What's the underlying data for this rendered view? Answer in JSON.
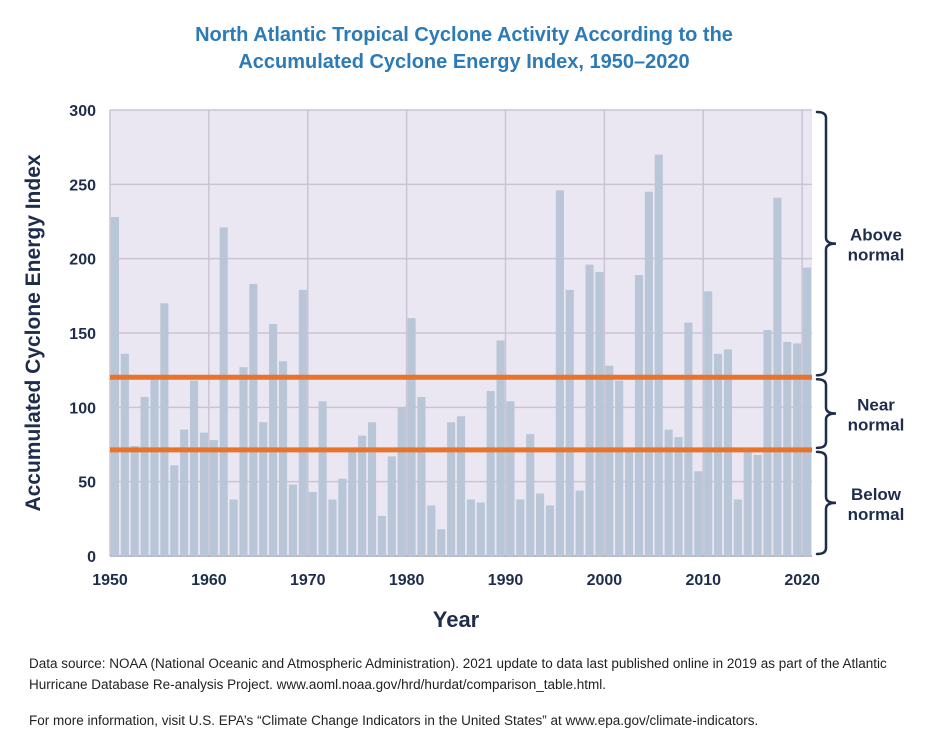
{
  "chart_data": {
    "type": "bar",
    "title": [
      "North Atlantic Tropical Cyclone Activity According to the",
      "Accumulated Cyclone Energy Index, 1950–2020"
    ],
    "xlabel": "Year",
    "ylabel": "Accumulated Cyclone Energy Index",
    "ylim": [
      0,
      300
    ],
    "yticks": [
      0,
      50,
      100,
      150,
      200,
      250,
      300
    ],
    "xticks": [
      1950,
      1960,
      1970,
      1980,
      1990,
      2000,
      2010,
      2020
    ],
    "grid": true,
    "categories": [
      1950,
      1951,
      1952,
      1953,
      1954,
      1955,
      1956,
      1957,
      1958,
      1959,
      1960,
      1961,
      1962,
      1963,
      1964,
      1965,
      1966,
      1967,
      1968,
      1969,
      1970,
      1971,
      1972,
      1973,
      1974,
      1975,
      1976,
      1977,
      1978,
      1979,
      1980,
      1981,
      1982,
      1983,
      1984,
      1985,
      1986,
      1987,
      1988,
      1989,
      1990,
      1991,
      1992,
      1993,
      1994,
      1995,
      1996,
      1997,
      1998,
      1999,
      2000,
      2001,
      2002,
      2003,
      2004,
      2005,
      2006,
      2007,
      2008,
      2009,
      2010,
      2011,
      2012,
      2013,
      2014,
      2015,
      2016,
      2017,
      2018,
      2019,
      2020
    ],
    "values": [
      228,
      136,
      74,
      107,
      120,
      170,
      61,
      85,
      118,
      83,
      78,
      221,
      38,
      127,
      183,
      90,
      156,
      131,
      48,
      179,
      43,
      104,
      38,
      52,
      72,
      81,
      90,
      27,
      67,
      100,
      160,
      107,
      34,
      18,
      90,
      94,
      38,
      36,
      111,
      145,
      104,
      38,
      82,
      42,
      34,
      246,
      179,
      44,
      196,
      191,
      128,
      118,
      72,
      189,
      245,
      270,
      85,
      80,
      157,
      57,
      178,
      136,
      139,
      38,
      72,
      68,
      152,
      241,
      144,
      143,
      194
    ],
    "reference_lines": [
      {
        "value": 120.25,
        "color": "#e8732a"
      },
      {
        "value": 71.4,
        "color": "#e8732a"
      }
    ],
    "brackets": [
      {
        "label": [
          "Above",
          "normal"
        ],
        "from": 120.25,
        "to": 300
      },
      {
        "label": [
          "Near",
          "normal"
        ],
        "from": 71.4,
        "to": 120.25
      },
      {
        "label": [
          "Below",
          "normal"
        ],
        "from": 0,
        "to": 71.4
      }
    ],
    "colors": {
      "bar": "#b8c6d8",
      "plot_bg": "#ebe7f2",
      "grid": "#c9c3d4",
      "axis_text": "#1f2d4d",
      "bracket": "#1f2d4d",
      "title": "#2c7bb6"
    }
  },
  "footer": {
    "source": "Data source: NOAA (National Oceanic and Atmospheric Administration). 2021 update to data last published online in 2019 as part of the Atlantic Hurricane Database Re-analysis Project. www.aoml.noaa.gov/hrd/hurdat/comparison_table.html.",
    "more_info": "For more information, visit U.S. EPA’s “Climate Change Indicators in the United States” at www.epa.gov/climate-indicators."
  }
}
